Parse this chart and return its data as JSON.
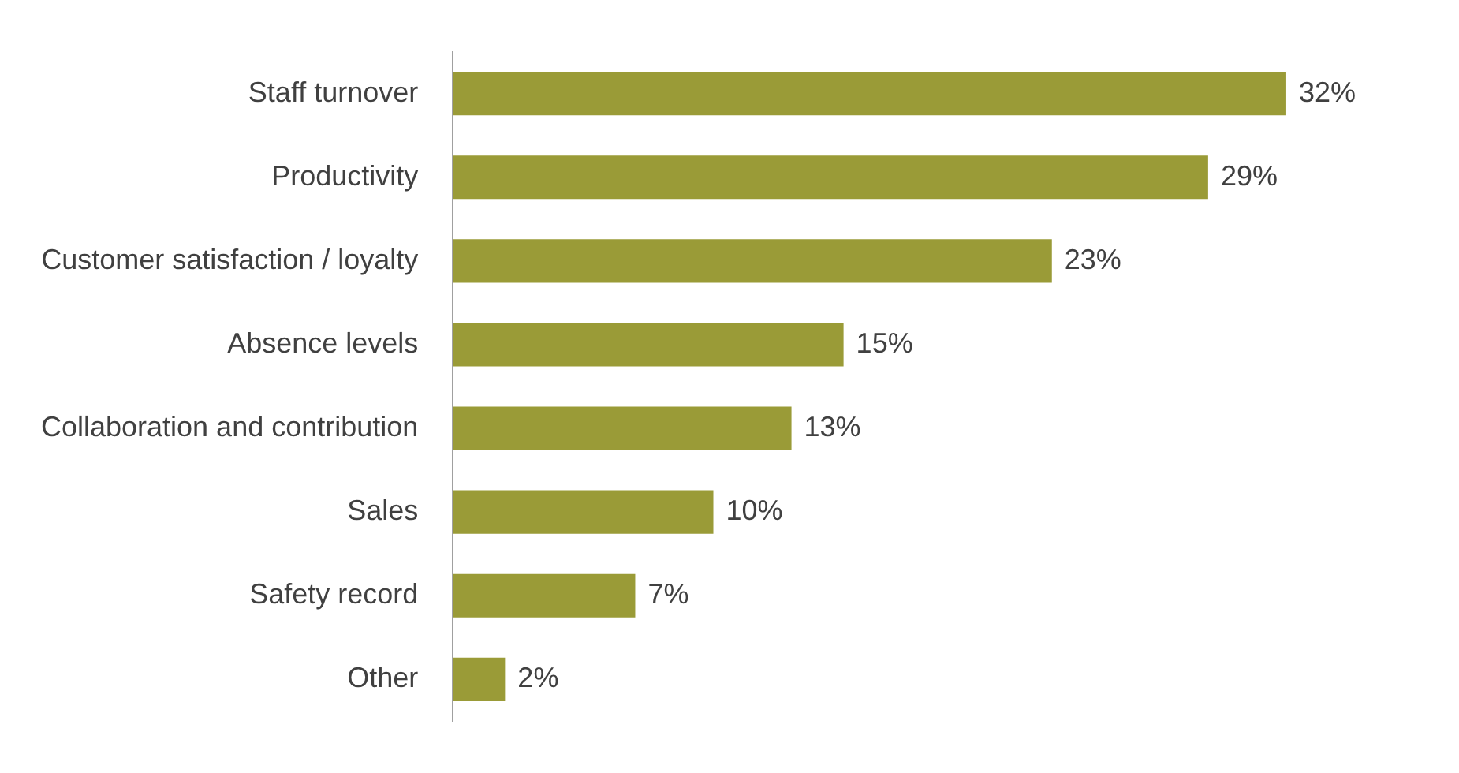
{
  "chart_data": {
    "type": "bar",
    "orientation": "horizontal",
    "categories": [
      "Staff turnover",
      "Productivity",
      "Customer satisfaction / loyalty",
      "Absence levels",
      "Collaboration and contribution",
      "Sales",
      "Safety record",
      "Other"
    ],
    "values": [
      32,
      29,
      23,
      15,
      13,
      10,
      7,
      2
    ],
    "value_labels": [
      "32%",
      "29%",
      "23%",
      "15%",
      "13%",
      "10%",
      "7%",
      "2%"
    ],
    "color": "#9a9b37",
    "grid": false,
    "legend": false
  }
}
